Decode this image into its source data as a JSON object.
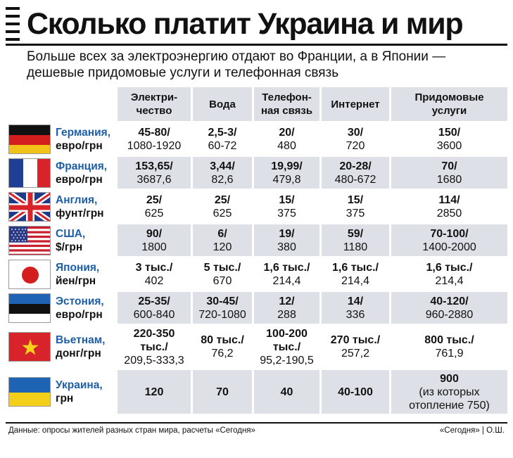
{
  "title": "Сколько платит Украина и мир",
  "subtitle": "Больше всех за электроэнергию отдают во Франции, а в Японии — дешевые придомовые услуги и телефонная связь",
  "columns": [
    "Электри-\nчество",
    "Вода",
    "Телефон-\nная связь",
    "Интернет",
    "Придомовые\nуслуги"
  ],
  "rows": [
    {
      "country": "Германия,",
      "currency": "евро/грн",
      "flag": "germany-flag",
      "cells": [
        [
          "45-80/",
          "1080-1920"
        ],
        [
          "2,5-3/",
          "60-72"
        ],
        [
          "20/",
          "480"
        ],
        [
          "30/",
          "720"
        ],
        [
          "150/",
          "3600"
        ]
      ]
    },
    {
      "country": "Франция,",
      "currency": "евро/грн",
      "flag": "france-flag",
      "cells": [
        [
          "153,65/",
          "3687,6"
        ],
        [
          "3,44/",
          "82,6"
        ],
        [
          "19,99/",
          "479,8"
        ],
        [
          "20-28/",
          "480-672"
        ],
        [
          "70/",
          "1680"
        ]
      ]
    },
    {
      "country": "Англия,",
      "currency": "фунт/грн",
      "flag": "uk-flag",
      "cells": [
        [
          "25/",
          "625"
        ],
        [
          "25/",
          "625"
        ],
        [
          "15/",
          "375"
        ],
        [
          "15/",
          "375"
        ],
        [
          "114/",
          "2850"
        ]
      ]
    },
    {
      "country": "США,",
      "currency": "$/грн",
      "flag": "usa-flag",
      "cells": [
        [
          "90/",
          "1800"
        ],
        [
          "6/",
          "120"
        ],
        [
          "19/",
          "380"
        ],
        [
          "59/",
          "1180"
        ],
        [
          "70-100/",
          "1400-2000"
        ]
      ]
    },
    {
      "country": "Япония,",
      "currency": "йен/грн",
      "flag": "japan-flag",
      "cells": [
        [
          "3 тыс./",
          "402"
        ],
        [
          "5 тыс./",
          "670"
        ],
        [
          "1,6 тыс./",
          "214,4"
        ],
        [
          "1,6 тыс./",
          "214,4"
        ],
        [
          "1,6 тыс./",
          "214,4"
        ]
      ]
    },
    {
      "country": "Эстония,",
      "currency": "евро/грн",
      "flag": "estonia-flag",
      "cells": [
        [
          "25-35/",
          "600-840"
        ],
        [
          "30-45/",
          "720-1080"
        ],
        [
          "12/",
          "288"
        ],
        [
          "14/",
          "336"
        ],
        [
          "40-120/",
          "960-2880"
        ]
      ]
    },
    {
      "country": "Вьетнам,",
      "currency": "донг/грн",
      "flag": "vietnam-flag",
      "cells": [
        [
          "220-350\nтыс./",
          "209,5-333,3"
        ],
        [
          "80 тыс./",
          "76,2"
        ],
        [
          "100-200\nтыс./",
          "95,2-190,5"
        ],
        [
          "270 тыс./",
          "257,2"
        ],
        [
          "800 тыс./",
          "761,9"
        ]
      ]
    },
    {
      "country": "Украина,",
      "currency": "грн",
      "flag": "ukraine-flag",
      "cells": [
        [
          "120",
          ""
        ],
        [
          "70",
          ""
        ],
        [
          "40",
          ""
        ],
        [
          "40-100",
          ""
        ],
        [
          "900",
          "(из которых\nотопление 750)"
        ]
      ]
    }
  ],
  "footer": "Данные: опросы жителей разных стран мира, расчеты «Сегодня»",
  "credit": "«Сегодня» | О.Ш.",
  "colors": {
    "header_bg": "#dde1e7",
    "row_alt": "#dde1e7",
    "country_blue": "#1d5ea8"
  }
}
